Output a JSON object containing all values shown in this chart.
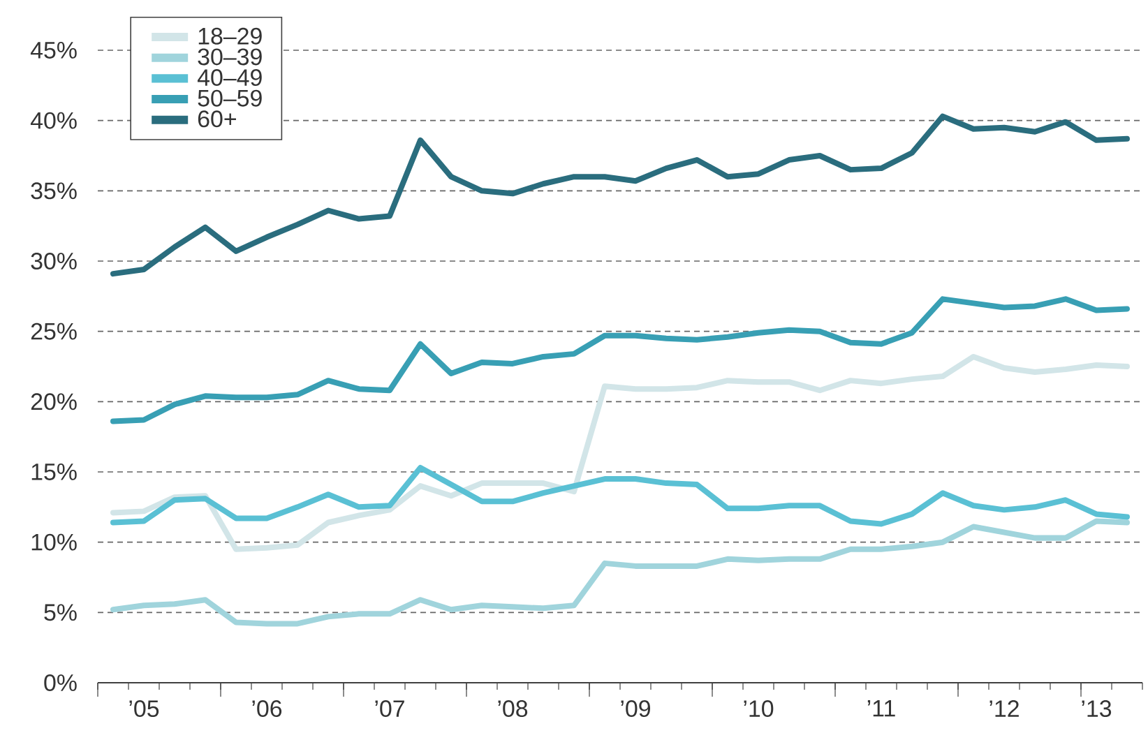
{
  "chart_data": {
    "type": "line",
    "categories": [
      null,
      "’05",
      null,
      null,
      null,
      "’06",
      null,
      null,
      null,
      "’07",
      null,
      null,
      null,
      "’08",
      null,
      null,
      null,
      "’09",
      null,
      null,
      null,
      "’10",
      null,
      null,
      null,
      "’11",
      null,
      null,
      null,
      "’12",
      null,
      null,
      "’13",
      null
    ],
    "series": [
      {
        "name": "18–29",
        "color": "#d2e5e8",
        "values": [
          12.1,
          12.2,
          13.2,
          13.3,
          9.5,
          9.6,
          9.8,
          11.4,
          11.9,
          12.3,
          14.0,
          13.3,
          14.2,
          14.2,
          14.2,
          13.6,
          21.1,
          20.9,
          20.9,
          21.0,
          21.5,
          21.4,
          21.4,
          20.8,
          21.5,
          21.3,
          21.6,
          21.8,
          23.2,
          22.4,
          22.1,
          22.3,
          22.6,
          22.5
        ]
      },
      {
        "name": "30–39",
        "color": "#a0d4dc",
        "values": [
          5.2,
          5.5,
          5.6,
          5.9,
          4.3,
          4.2,
          4.2,
          4.7,
          4.9,
          4.9,
          5.9,
          5.2,
          5.5,
          5.4,
          5.3,
          5.5,
          8.5,
          8.3,
          8.3,
          8.3,
          8.8,
          8.7,
          8.8,
          8.8,
          9.5,
          9.5,
          9.7,
          10.0,
          11.1,
          10.7,
          10.3,
          10.3,
          11.5,
          11.4
        ]
      },
      {
        "name": "40–49",
        "color": "#5ac0d4",
        "values": [
          11.4,
          11.5,
          13.0,
          13.1,
          11.7,
          11.7,
          12.5,
          13.4,
          12.5,
          12.6,
          15.3,
          14.1,
          12.9,
          12.9,
          13.5,
          14.0,
          14.5,
          14.5,
          14.2,
          14.1,
          12.4,
          12.4,
          12.6,
          12.6,
          11.5,
          11.3,
          12.0,
          13.5,
          12.6,
          12.3,
          12.5,
          13.0,
          12.0,
          11.8
        ]
      },
      {
        "name": "50–59",
        "color": "#389fb4",
        "values": [
          18.6,
          18.7,
          19.8,
          20.4,
          20.3,
          20.3,
          20.5,
          21.5,
          20.9,
          20.8,
          24.1,
          22.0,
          22.8,
          22.7,
          23.2,
          23.4,
          24.7,
          24.7,
          24.5,
          24.4,
          24.6,
          24.9,
          25.1,
          25.0,
          24.2,
          24.1,
          24.9,
          27.3,
          27.0,
          26.7,
          26.8,
          27.3,
          26.5,
          26.6
        ]
      },
      {
        "name": "60+",
        "color": "#2a6d7e",
        "values": [
          29.1,
          29.4,
          31.0,
          32.4,
          30.7,
          31.7,
          32.6,
          33.6,
          33.0,
          33.2,
          38.6,
          36.0,
          35.0,
          34.8,
          35.5,
          36.0,
          36.0,
          35.7,
          36.6,
          37.2,
          36.0,
          36.2,
          37.2,
          37.5,
          36.5,
          36.6,
          37.7,
          40.3,
          39.4,
          39.5,
          39.2,
          39.9,
          38.6,
          38.7
        ]
      }
    ],
    "ylim": [
      0,
      45
    ],
    "yticks": [
      {
        "value": 0,
        "label": "0%"
      },
      {
        "value": 5,
        "label": "5%"
      },
      {
        "value": 10,
        "label": "10%"
      },
      {
        "value": 15,
        "label": "15%"
      },
      {
        "value": 20,
        "label": "20%"
      },
      {
        "value": 25,
        "label": "25%"
      },
      {
        "value": 30,
        "label": "30%"
      },
      {
        "value": 35,
        "label": "35%"
      },
      {
        "value": 40,
        "label": "40%"
      },
      {
        "value": 45,
        "label": "45%"
      }
    ],
    "grid": "y",
    "legend": "top left"
  }
}
